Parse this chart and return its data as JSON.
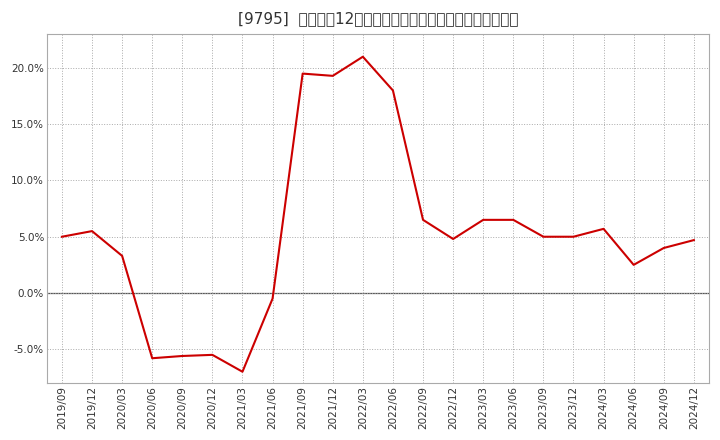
{
  "title": "[9795]  売上高の12か月移動合計の対前年同期増減率の推移",
  "line_color": "#cc0000",
  "bg_color": "#ffffff",
  "plot_bg_color": "#ffffff",
  "grid_color": "#aaaaaa",
  "x_labels": [
    "2019/09",
    "2019/12",
    "2020/03",
    "2020/06",
    "2020/09",
    "2020/12",
    "2021/03",
    "2021/06",
    "2021/09",
    "2021/12",
    "2022/03",
    "2022/06",
    "2022/09",
    "2022/12",
    "2023/03",
    "2023/06",
    "2023/09",
    "2023/12",
    "2024/03",
    "2024/06",
    "2024/09",
    "2024/12"
  ],
  "y_values": [
    5.0,
    5.5,
    3.3,
    -5.8,
    -5.6,
    -5.5,
    -7.0,
    -0.5,
    19.5,
    19.3,
    21.0,
    18.0,
    6.5,
    4.8,
    6.5,
    6.5,
    5.0,
    5.0,
    5.7,
    2.5,
    4.0,
    4.7
  ],
  "ylim": [
    -8,
    23
  ],
  "yticks": [
    -5.0,
    0.0,
    5.0,
    10.0,
    15.0,
    20.0
  ],
  "title_fontsize": 11,
  "tick_fontsize": 7.5
}
